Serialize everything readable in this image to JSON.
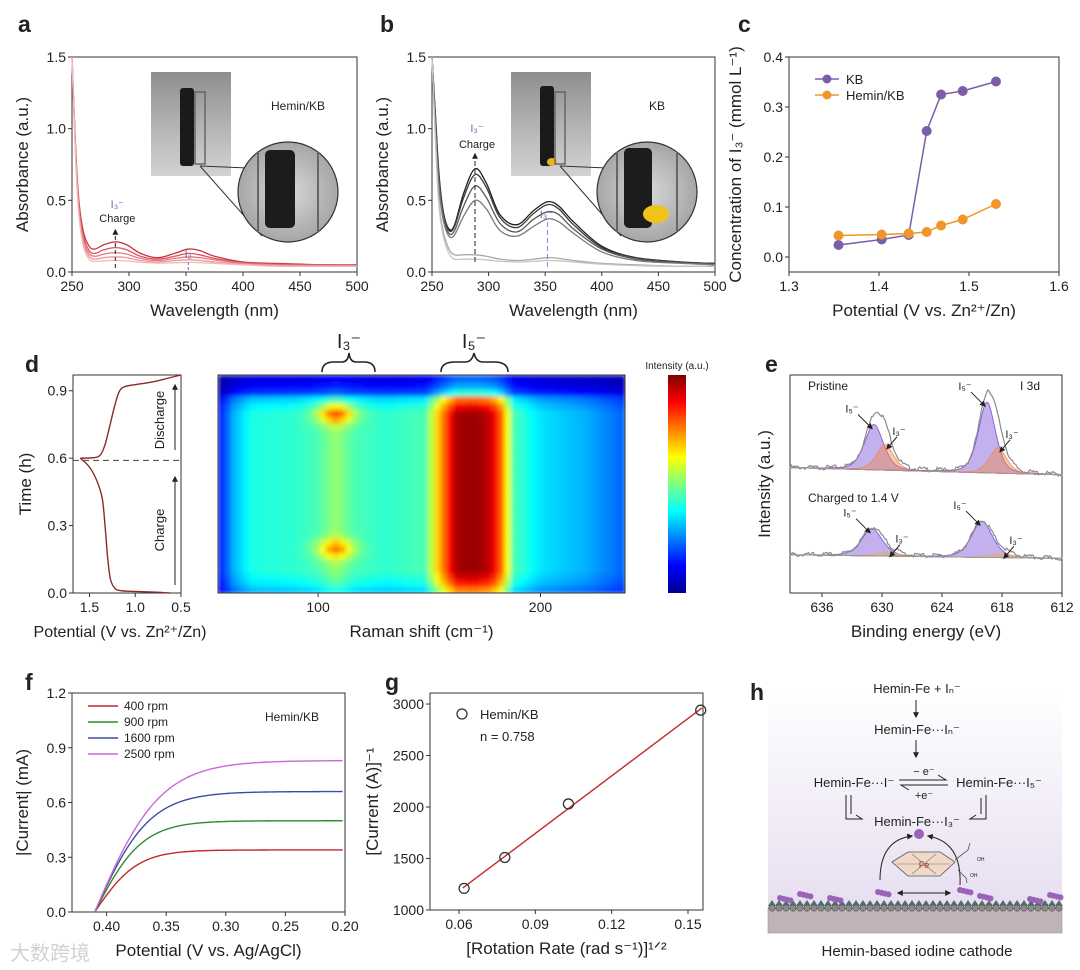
{
  "watermark": "大数跨境",
  "chart_data": [
    {
      "panel": "a",
      "type": "line",
      "xlabel": "Wavelength (nm)",
      "ylabel": "Absorbance (a.u.)",
      "xlim": [
        250,
        500
      ],
      "ylim": [
        0,
        1.5
      ],
      "xticks": [
        "250",
        "300",
        "350",
        "400",
        "450",
        "500"
      ],
      "yticks": [
        "0.0",
        "0.5",
        "1.0",
        "1.5"
      ],
      "sample_label": "Hemin/KB",
      "annotations": {
        "i3": "I₃⁻",
        "charge": "Charge",
        "i2": "I₂"
      },
      "x": [
        250,
        253,
        256,
        260,
        265,
        270,
        278,
        288,
        298,
        310,
        325,
        340,
        352,
        362,
        375,
        400,
        430,
        470,
        500
      ],
      "series": [
        {
          "color": "#c8323a",
          "values": [
            1.5,
            0.9,
            0.5,
            0.28,
            0.18,
            0.16,
            0.19,
            0.21,
            0.19,
            0.13,
            0.1,
            0.13,
            0.16,
            0.15,
            0.11,
            0.07,
            0.06,
            0.05,
            0.05
          ]
        },
        {
          "color": "#d8555c",
          "values": [
            1.5,
            0.88,
            0.47,
            0.25,
            0.15,
            0.13,
            0.155,
            0.17,
            0.155,
            0.11,
            0.09,
            0.11,
            0.13,
            0.12,
            0.095,
            0.065,
            0.055,
            0.05,
            0.05
          ]
        },
        {
          "color": "#e27a7f",
          "values": [
            1.5,
            0.86,
            0.45,
            0.22,
            0.13,
            0.11,
            0.125,
            0.135,
            0.125,
            0.095,
            0.08,
            0.095,
            0.105,
            0.1,
            0.085,
            0.06,
            0.05,
            0.045,
            0.045
          ]
        },
        {
          "color": "#eb9a9d",
          "values": [
            1.5,
            0.84,
            0.42,
            0.2,
            0.11,
            0.09,
            0.1,
            0.105,
            0.1,
            0.08,
            0.07,
            0.08,
            0.085,
            0.08,
            0.07,
            0.055,
            0.045,
            0.04,
            0.04
          ]
        },
        {
          "color": "#f2b8ba",
          "values": [
            1.5,
            0.82,
            0.4,
            0.18,
            0.09,
            0.075,
            0.078,
            0.08,
            0.077,
            0.068,
            0.062,
            0.065,
            0.067,
            0.065,
            0.06,
            0.05,
            0.04,
            0.04,
            0.04
          ]
        }
      ]
    },
    {
      "panel": "b",
      "type": "line",
      "xlabel": "Wavelength (nm)",
      "ylabel": "Absorbance (a.u.)",
      "xlim": [
        250,
        500
      ],
      "ylim": [
        0,
        1.5
      ],
      "xticks": [
        "250",
        "300",
        "350",
        "400",
        "450",
        "500"
      ],
      "yticks": [
        "0.0",
        "0.5",
        "1.0",
        "1.5"
      ],
      "sample_label": "KB",
      "annotations": {
        "i3": "I₃⁻",
        "charge": "Charge",
        "i3b": "I₃⁻"
      },
      "x": [
        250,
        253,
        256,
        260,
        265,
        270,
        278,
        288,
        298,
        310,
        325,
        340,
        352,
        362,
        375,
        400,
        430,
        470,
        500
      ],
      "series": [
        {
          "color": "#1e1e1e",
          "values": [
            1.5,
            1.1,
            0.7,
            0.42,
            0.3,
            0.33,
            0.55,
            0.72,
            0.62,
            0.4,
            0.33,
            0.43,
            0.49,
            0.46,
            0.35,
            0.18,
            0.1,
            0.07,
            0.06
          ]
        },
        {
          "color": "#3c3c3c",
          "values": [
            1.5,
            1.08,
            0.68,
            0.41,
            0.29,
            0.32,
            0.52,
            0.68,
            0.59,
            0.38,
            0.31,
            0.41,
            0.47,
            0.44,
            0.33,
            0.17,
            0.1,
            0.07,
            0.06
          ]
        },
        {
          "color": "#5a5a5a",
          "values": [
            1.5,
            1.05,
            0.65,
            0.39,
            0.27,
            0.29,
            0.46,
            0.6,
            0.52,
            0.34,
            0.28,
            0.37,
            0.42,
            0.4,
            0.3,
            0.16,
            0.09,
            0.065,
            0.055
          ]
        },
        {
          "color": "#7a7a7a",
          "values": [
            1.5,
            1.0,
            0.6,
            0.36,
            0.25,
            0.26,
            0.39,
            0.5,
            0.44,
            0.29,
            0.25,
            0.32,
            0.37,
            0.35,
            0.27,
            0.14,
            0.08,
            0.06,
            0.05
          ]
        },
        {
          "color": "#a8a8a8",
          "values": [
            1.5,
            0.95,
            0.5,
            0.28,
            0.16,
            0.12,
            0.12,
            0.12,
            0.11,
            0.09,
            0.08,
            0.09,
            0.1,
            0.095,
            0.08,
            0.06,
            0.05,
            0.04,
            0.04
          ]
        },
        {
          "color": "#c4c4c4",
          "values": [
            1.5,
            0.93,
            0.47,
            0.25,
            0.13,
            0.09,
            0.09,
            0.09,
            0.085,
            0.075,
            0.07,
            0.075,
            0.08,
            0.078,
            0.07,
            0.055,
            0.045,
            0.04,
            0.04
          ]
        }
      ]
    },
    {
      "panel": "c",
      "type": "line",
      "xlabel": "Potential (V vs. Zn²⁺/Zn)",
      "ylabel": "Concentration of I₃⁻ (mmol L⁻¹)",
      "xlim": [
        1.3,
        1.6
      ],
      "ylim": [
        -0.03,
        0.4
      ],
      "xticks": [
        "1.3",
        "1.4",
        "1.5",
        "1.6"
      ],
      "yticks": [
        "0.0",
        "0.1",
        "0.2",
        "0.3",
        "0.4"
      ],
      "legend": "top-left",
      "x": [
        1.355,
        1.403,
        1.433,
        1.453,
        1.469,
        1.493,
        1.53
      ],
      "series": [
        {
          "name": "KB",
          "color": "#7b5ea7",
          "values": [
            0.024,
            0.035,
            0.044,
            0.252,
            0.325,
            0.332,
            0.351
          ]
        },
        {
          "name": "Hemin/KB",
          "color": "#f0952a",
          "values": [
            0.043,
            0.045,
            0.047,
            0.05,
            0.063,
            0.075,
            0.106
          ]
        }
      ]
    },
    {
      "panel": "d",
      "type": "line",
      "xlabel": "Potential (V vs. Zn²⁺/Zn)",
      "ylabel": "Time (h)",
      "xlim": [
        1.68,
        0.5
      ],
      "ylim": [
        0,
        0.97
      ],
      "xticks": [
        "1.5",
        "1.0",
        "0.5"
      ],
      "yticks": [
        "0.0",
        "0.3",
        "0.6",
        "0.9"
      ],
      "divider_time": 0.59,
      "labels": {
        "discharge": "Discharge",
        "charge": "Charge"
      },
      "series": [
        {
          "name": "Charge",
          "color": "#8b2a2a",
          "points": [
            [
              0.62,
              0.0
            ],
            [
              0.8,
              0.004
            ],
            [
              1.0,
              0.007
            ],
            [
              1.15,
              0.01
            ],
            [
              1.22,
              0.02
            ],
            [
              1.27,
              0.06
            ],
            [
              1.3,
              0.15
            ],
            [
              1.33,
              0.3
            ],
            [
              1.36,
              0.42
            ],
            [
              1.42,
              0.5
            ],
            [
              1.5,
              0.56
            ],
            [
              1.6,
              0.6
            ]
          ]
        },
        {
          "name": "Discharge",
          "color": "#8b2a2a",
          "points": [
            [
              1.6,
              0.6
            ],
            [
              1.45,
              0.602
            ],
            [
              1.38,
              0.615
            ],
            [
              1.33,
              0.66
            ],
            [
              1.28,
              0.74
            ],
            [
              1.22,
              0.84
            ],
            [
              1.17,
              0.9
            ],
            [
              1.1,
              0.92
            ],
            [
              0.95,
              0.93
            ],
            [
              0.8,
              0.94
            ],
            [
              0.65,
              0.955
            ],
            [
              0.5,
              0.97
            ]
          ]
        }
      ]
    },
    {
      "panel": "d-heatmap",
      "type": "heatmap",
      "xlabel": "Raman shift (cm⁻¹)",
      "xlim": [
        55,
        238
      ],
      "ylim": [
        0,
        0.97
      ],
      "xticks": [
        "100",
        "200"
      ],
      "colorbar_label": "Intensity (a.u.)",
      "band_labels": [
        "I₃⁻",
        "I₅⁻"
      ],
      "band_ranges": [
        [
          101,
          125
        ],
        [
          154,
          184
        ]
      ],
      "profile": {
        "shift": [
          55,
          62,
          70,
          90,
          100,
          108,
          116,
          130,
          148,
          155,
          162,
          170,
          178,
          182,
          188,
          200,
          220,
          238
        ],
        "intensity": [
          0.12,
          0.3,
          0.4,
          0.42,
          0.45,
          0.52,
          0.45,
          0.42,
          0.45,
          0.72,
          0.96,
          0.98,
          0.93,
          0.8,
          0.45,
          0.35,
          0.3,
          0.22
        ]
      },
      "time_envelope": {
        "time": [
          0,
          0.03,
          0.1,
          0.8,
          0.86,
          0.9,
          0.97
        ],
        "factor": [
          0.7,
          0.85,
          1,
          1,
          0.85,
          0.35,
          0.2
        ]
      },
      "hotspots": [
        {
          "shift": 108,
          "time": 0.2,
          "amp": 0.25
        },
        {
          "shift": 108,
          "time": 0.8,
          "amp": 0.3
        }
      ]
    },
    {
      "panel": "e",
      "type": "line",
      "xlabel": "Binding energy (eV)",
      "ylabel": "Intensity (a.u.)",
      "xlim": [
        639.2,
        612
      ],
      "ylim": [
        0,
        2.4
      ],
      "xticks": [
        "636",
        "630",
        "624",
        "618",
        "612"
      ],
      "core_level": "I 3d",
      "spectra": [
        {
          "name": "Pristine",
          "baseline": [
            1.38,
            1.3
          ],
          "peaks": [
            {
              "label": "I₅⁻",
              "center": 630.8,
              "height": 0.5,
              "width": 1.0,
              "color": "#7b4fd6"
            },
            {
              "label": "I₃⁻",
              "center": 629.7,
              "height": 0.28,
              "width": 0.9,
              "color": "#f08a4b"
            },
            {
              "label": "I₅⁻",
              "center": 619.5,
              "height": 0.78,
              "width": 0.9,
              "color": "#7b4fd6"
            },
            {
              "label": "I₃⁻",
              "center": 618.4,
              "height": 0.28,
              "width": 0.9,
              "color": "#f08a4b"
            }
          ]
        },
        {
          "name": "Charged to 1.4 V",
          "baseline": [
            0.42,
            0.38
          ],
          "peaks": [
            {
              "label": "I₅⁻",
              "center": 631.0,
              "height": 0.3,
              "width": 1.1,
              "color": "#7b4fd6"
            },
            {
              "label": "I₃⁻",
              "center": 629.4,
              "height": 0.04,
              "width": 1.2,
              "color": "#e0b050"
            },
            {
              "label": "I₅⁻",
              "center": 620.0,
              "height": 0.4,
              "width": 1.1,
              "color": "#7b4fd6"
            },
            {
              "label": "I₃⁻",
              "center": 618.0,
              "height": 0.04,
              "width": 1.2,
              "color": "#e0b050"
            }
          ]
        }
      ]
    },
    {
      "panel": "f",
      "type": "line",
      "xlabel": "Potential (V vs. Ag/AgCl)",
      "ylabel": "|Current| (mA)",
      "xlim": [
        0.429,
        0.2
      ],
      "ylim": [
        0,
        1.2
      ],
      "xticks": [
        "0.40",
        "0.35",
        "0.30",
        "0.25",
        "0.20"
      ],
      "yticks": [
        "0.0",
        "0.3",
        "0.6",
        "0.9",
        "1.2"
      ],
      "sample_label": "Hemin/KB",
      "legend": "top-left",
      "onset_V": 0.41,
      "series": [
        {
          "name": "400  rpm",
          "color": "#c0282d",
          "limiting_mA": 0.34,
          "rise_V": 0.036
        },
        {
          "name": "900  rpm",
          "color": "#2e8b2e",
          "limiting_mA": 0.5,
          "rise_V": 0.04
        },
        {
          "name": "1600 rpm",
          "color": "#3b4fa0",
          "limiting_mA": 0.66,
          "rise_V": 0.046
        },
        {
          "name": "2500 rpm",
          "color": "#c66ad6",
          "limiting_mA": 0.83,
          "rise_V": 0.055
        }
      ]
    },
    {
      "panel": "g",
      "type": "scatter",
      "xlabel": "[Rotation Rate (rad s⁻¹)]¹ᐟ²",
      "ylabel": "[Current (A)]⁻¹",
      "xlim": [
        0.0486,
        0.1559
      ],
      "ylim": [
        1000,
        3107
      ],
      "xticks": [
        "0.06",
        "0.09",
        "0.12",
        "0.15"
      ],
      "yticks": [
        "1000",
        "1500",
        "2000",
        "2500",
        "3000"
      ],
      "legend": "top-left",
      "series": [
        {
          "name": "Hemin/KB",
          "x": [
            0.062,
            0.078,
            0.103,
            0.155
          ],
          "y": [
            1210,
            1510,
            2030,
            2940
          ]
        }
      ],
      "fit": {
        "slope": 18600,
        "intercept": 70,
        "color": "#c0282d"
      },
      "annotation": "n = 0.758"
    }
  ],
  "panel_h": {
    "label": "h",
    "step1": "Hemin-Fe + Iₙ⁻",
    "step2": "Hemin-Fe···Iₙ⁻",
    "left": "Hemin-Fe···I⁻",
    "right": "Hemin-Fe···I₅⁻",
    "bottom": "Hemin-Fe···I₃⁻",
    "minus_e": "− e⁻",
    "plus_e": "+e⁻",
    "fe": "Fe",
    "oh1": "OH",
    "oh2": "OH",
    "caption": "Hemin-based iodine cathode"
  }
}
